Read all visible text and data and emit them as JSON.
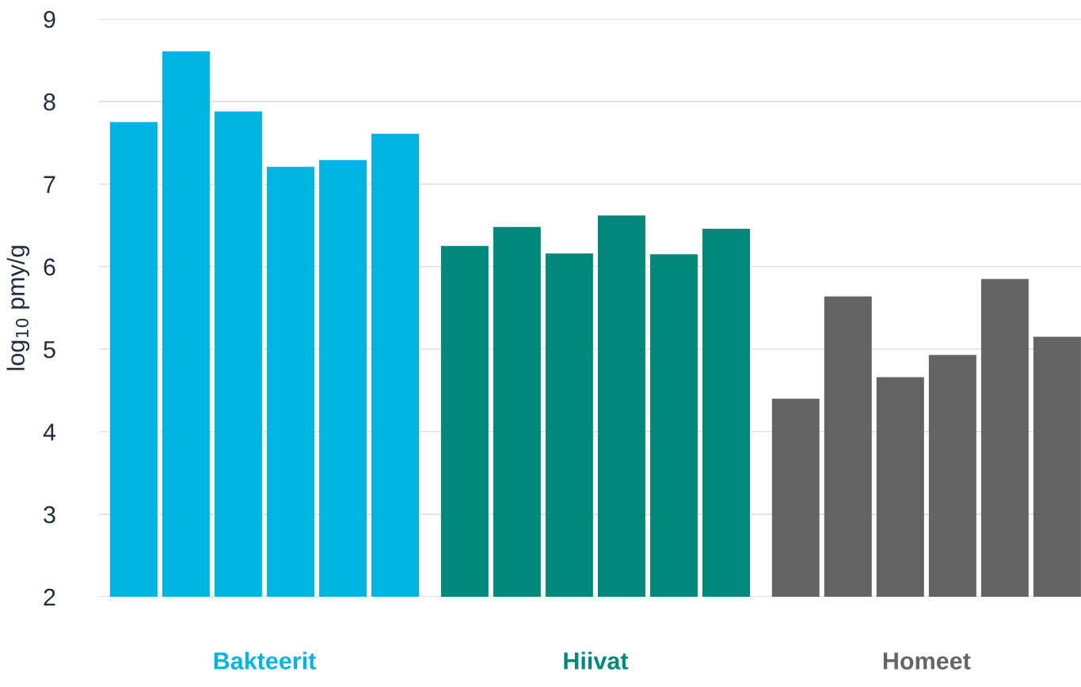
{
  "chart_data": {
    "type": "bar",
    "ylabel": "log$_{10}$ pmy/g",
    "categories": [
      "Bakteerit",
      "Hiivat",
      "Homeet"
    ],
    "series": [
      {
        "colors": [
          "#00b5e2",
          "#00897b",
          "#646464"
        ],
        "values": [
          7.75,
          6.25,
          4.4
        ]
      },
      {
        "colors": [
          "#00b5e2",
          "#00897b",
          "#646464"
        ],
        "values": [
          8.61,
          6.48,
          5.64
        ]
      },
      {
        "colors": [
          "#00b5e2",
          "#00897b",
          "#646464"
        ],
        "values": [
          7.88,
          6.16,
          4.66
        ]
      },
      {
        "colors": [
          "#00b5e2",
          "#00897b",
          "#646464"
        ],
        "values": [
          7.21,
          6.62,
          4.93
        ]
      },
      {
        "colors": [
          "#00b5e2",
          "#00897b",
          "#646464"
        ],
        "values": [
          7.29,
          6.15,
          5.85
        ]
      },
      {
        "colors": [
          "#00b5e2",
          "#00897b",
          "#646464"
        ],
        "values": [
          7.61,
          6.46,
          5.15
        ]
      }
    ],
    "ylim": [
      2,
      9
    ],
    "yticks": [
      2,
      3,
      4,
      5,
      6,
      7,
      8,
      9
    ],
    "grid": "y"
  }
}
